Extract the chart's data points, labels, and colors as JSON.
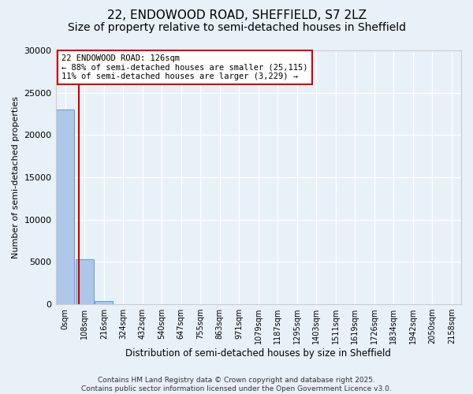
{
  "title_line1": "22, ENDOWOOD ROAD, SHEFFIELD, S7 2LZ",
  "title_line2": "Size of property relative to semi-detached houses in Sheffield",
  "xlabel": "Distribution of semi-detached houses by size in Sheffield",
  "ylabel": "Number of semi-detached properties",
  "bin_labels": [
    "0sqm",
    "108sqm",
    "216sqm",
    "324sqm",
    "432sqm",
    "540sqm",
    "647sqm",
    "755sqm",
    "863sqm",
    "971sqm",
    "1079sqm",
    "1187sqm",
    "1295sqm",
    "1403sqm",
    "1511sqm",
    "1619sqm",
    "1726sqm",
    "1834sqm",
    "1942sqm",
    "2050sqm",
    "2158sqm"
  ],
  "bar_heights": [
    23000,
    5300,
    350,
    0,
    0,
    0,
    0,
    0,
    0,
    0,
    0,
    0,
    0,
    0,
    0,
    0,
    0,
    0,
    0,
    0,
    0
  ],
  "bar_color": "#aec6e8",
  "bar_edge_color": "#5a9fd4",
  "property_size": 126,
  "bin_width": 108,
  "red_line_color": "#cc0000",
  "annotation_line1": "22 ENDOWOOD ROAD: 126sqm",
  "annotation_line2": "← 88% of semi-detached houses are smaller (25,115)",
  "annotation_line3": "11% of semi-detached houses are larger (3,229) →",
  "annotation_box_color": "#ffffff",
  "annotation_border_color": "#cc0000",
  "ylim": [
    0,
    30000
  ],
  "yticks": [
    0,
    5000,
    10000,
    15000,
    20000,
    25000,
    30000
  ],
  "footer": "Contains HM Land Registry data © Crown copyright and database right 2025.\nContains public sector information licensed under the Open Government Licence v3.0.",
  "background_color": "#e8f0f8",
  "plot_bg_color": "#e8f0f8",
  "grid_color": "#ffffff",
  "title_fontsize": 11,
  "subtitle_fontsize": 10
}
